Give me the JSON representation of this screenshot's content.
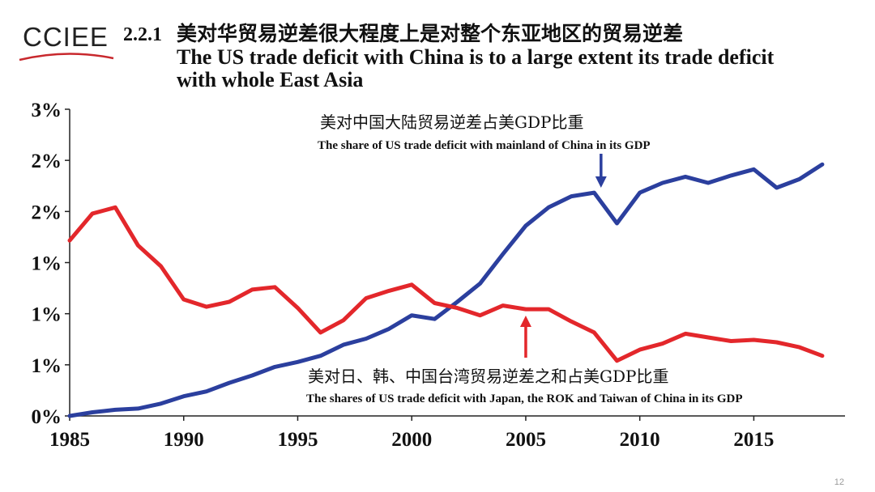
{
  "logo": {
    "text": "CCIEE",
    "swoosh_color": "#c8282d"
  },
  "header": {
    "section_number": "2.2.1",
    "title_cn": "美对华贸易逆差很大程度上是对整个东亚地区的贸易逆差",
    "title_en": "The US trade deficit with China is to a large extent its trade deficit with whole East Asia"
  },
  "page_number": "12",
  "chart_data": {
    "type": "line",
    "x_ticks": [
      "1985",
      "1990",
      "1995",
      "2000",
      "2005",
      "2010",
      "2015"
    ],
    "y_ticks": [
      "0%",
      "1%",
      "1%",
      "1%",
      "2%",
      "2%",
      "3%"
    ],
    "xlim": [
      1985,
      2019
    ],
    "ylim": [
      0,
      2.5
    ],
    "grid": false,
    "series": [
      {
        "name": "美对中国大陆贸易逆差占美GDP比重",
        "name_en": "The share of US trade deficit with mainland of China in its GDP",
        "color": "#2b3f9e",
        "x": [
          1985,
          1986,
          1987,
          1988,
          1989,
          1990,
          1991,
          1992,
          1993,
          1994,
          1995,
          1996,
          1997,
          1998,
          1999,
          2000,
          2001,
          2002,
          2003,
          2004,
          2005,
          2006,
          2007,
          2008,
          2009,
          2010,
          2011,
          2012,
          2013,
          2014,
          2015,
          2016,
          2017,
          2018
        ],
        "values": [
          0.0,
          0.03,
          0.05,
          0.06,
          0.1,
          0.16,
          0.2,
          0.27,
          0.33,
          0.4,
          0.44,
          0.49,
          0.58,
          0.63,
          0.71,
          0.82,
          0.79,
          0.93,
          1.08,
          1.32,
          1.55,
          1.7,
          1.79,
          1.82,
          1.57,
          1.82,
          1.9,
          1.95,
          1.9,
          1.96,
          2.01,
          1.86,
          1.93,
          2.05
        ],
        "arrow_year": 2008.3,
        "arrow_color": "#2b3f9e"
      },
      {
        "name": "美对日、韩、中国台湾贸易逆差之和占美GDP比重",
        "name_en": "The shares of US trade deficit with Japan, the ROK and Taiwan of China in its GDP",
        "color": "#e3272b",
        "x": [
          1985,
          1986,
          1987,
          1988,
          1989,
          1990,
          1991,
          1992,
          1993,
          1994,
          1995,
          1996,
          1997,
          1998,
          1999,
          2000,
          2001,
          2002,
          2003,
          2004,
          2005,
          2006,
          2007,
          2008,
          2009,
          2010,
          2011,
          2012,
          2013,
          2014,
          2015,
          2016,
          2017,
          2018
        ],
        "values": [
          1.43,
          1.65,
          1.7,
          1.39,
          1.22,
          0.95,
          0.89,
          0.93,
          1.03,
          1.05,
          0.88,
          0.68,
          0.78,
          0.96,
          1.02,
          1.07,
          0.92,
          0.88,
          0.82,
          0.9,
          0.87,
          0.87,
          0.77,
          0.68,
          0.45,
          0.54,
          0.59,
          0.67,
          0.64,
          0.61,
          0.62,
          0.6,
          0.56,
          0.49
        ],
        "arrow_year": 2005,
        "arrow_color": "#e3272b"
      }
    ]
  }
}
